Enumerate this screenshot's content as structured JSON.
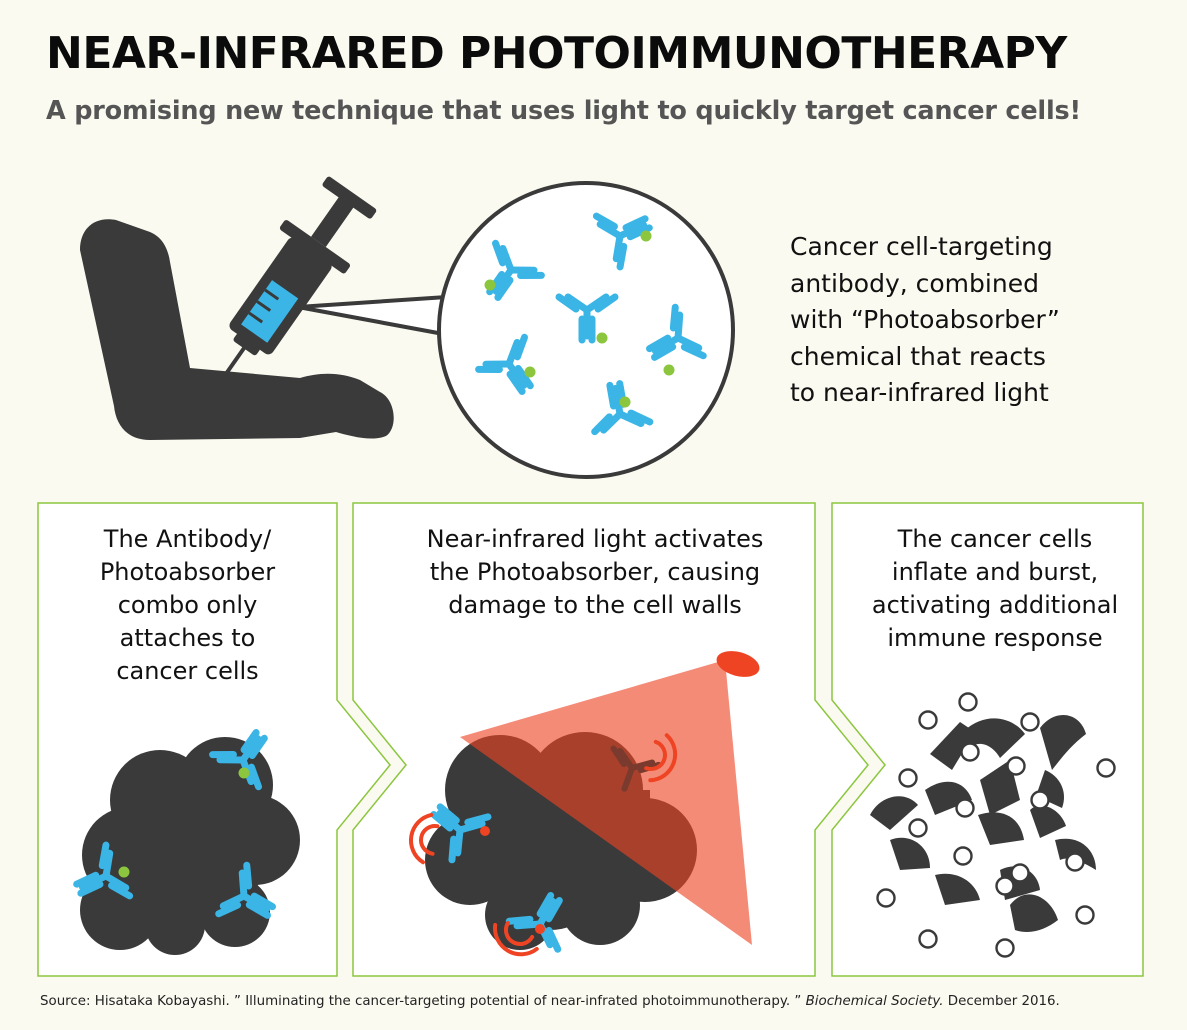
{
  "header": {
    "title": "NEAR-INFRARED PHOTOIMMUNOTHERAPY",
    "subtitle": "A promising new technique that uses light to quickly target cancer cells!"
  },
  "intro": {
    "lines": [
      "Cancer cell-targeting",
      "antibody, combined",
      "with “Photoabsorber”",
      "chemical that reacts",
      "to near-infrared light"
    ]
  },
  "steps": [
    {
      "lines": [
        "The Antibody/",
        "Photoabsorber",
        "combo only",
        "attaches to",
        "cancer cells"
      ]
    },
    {
      "lines": [
        "Near-infrared light activates",
        "the Photoabsorber, causing",
        "damage to the cell walls"
      ]
    },
    {
      "lines": [
        "The cancer cells",
        "inflate and burst,",
        "activating additional",
        "immune response"
      ]
    }
  ],
  "source": {
    "prefix": "Source: Hisataka Kobayashi. ” Illuminating the cancer-targeting potential of near-infrated photoimmunotherapy. ”",
    "journal": "Biochemical Society.",
    "suffix": "December 2016."
  },
  "colors": {
    "background": "#fbfaf0",
    "antibody": "#3ab5e6",
    "photoabsorber": "#8cc63f",
    "cell": "#3a3a3a",
    "light": "#ee4423",
    "panel_border": "#8cc63f"
  },
  "icons": [
    "arm-icon",
    "syringe-icon",
    "antibody-icon",
    "cancer-cell-icon",
    "light-beam-icon",
    "signal-wave-icon",
    "cell-fragment-icon"
  ]
}
